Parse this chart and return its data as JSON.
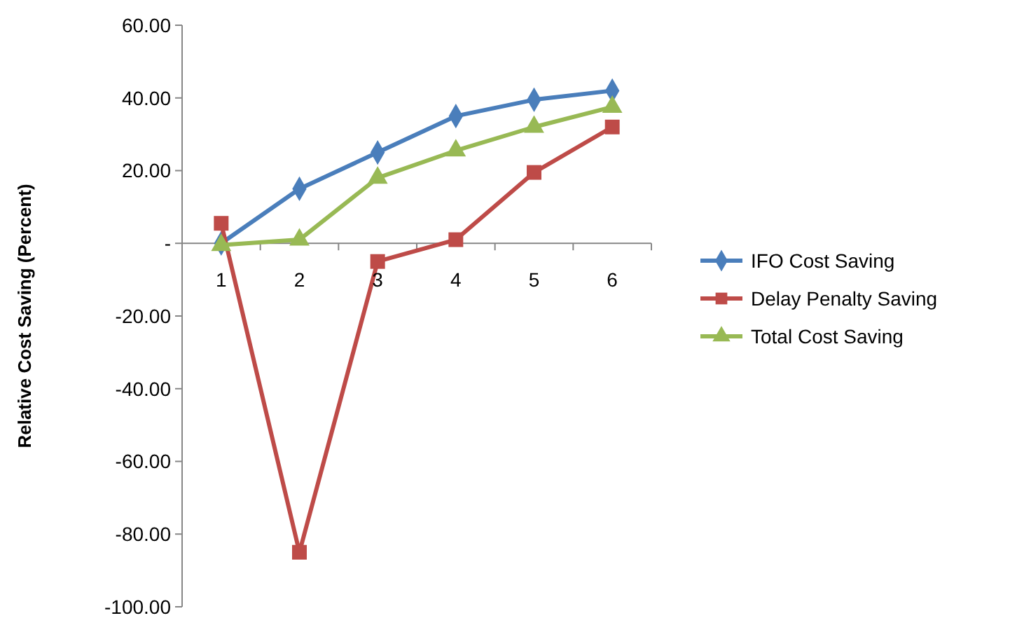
{
  "chart_data": {
    "type": "line",
    "ylabel": "Relative Cost Saving (Percent)",
    "categories": [
      "1",
      "2",
      "3",
      "4",
      "5",
      "6"
    ],
    "series": [
      {
        "name": "IFO Cost Saving",
        "color": "#4a7ebb",
        "marker": "diamond",
        "values": [
          0,
          15,
          25,
          35,
          39.5,
          42
        ]
      },
      {
        "name": "Delay Penalty Saving",
        "color": "#be4b48",
        "marker": "square",
        "values": [
          5.5,
          -85,
          -5,
          1,
          19.5,
          32
        ]
      },
      {
        "name": "Total Cost Saving",
        "color": "#98b954",
        "marker": "triangle",
        "values": [
          -0.5,
          1,
          18,
          25.5,
          32,
          37.5
        ]
      }
    ],
    "ylim": [
      -100,
      60
    ],
    "yticks": [
      {
        "value": -100,
        "label": "-100.00"
      },
      {
        "value": -80,
        "label": "-80.00"
      },
      {
        "value": -60,
        "label": "-60.00"
      },
      {
        "value": -40,
        "label": "-40.00"
      },
      {
        "value": -20,
        "label": "-20.00"
      },
      {
        "value": 0,
        "label": "-"
      },
      {
        "value": 20,
        "label": "20.00"
      },
      {
        "value": 40,
        "label": "40.00"
      },
      {
        "value": 60,
        "label": "60.00"
      }
    ],
    "legend": "right",
    "line_style": "solid",
    "grid": false
  }
}
